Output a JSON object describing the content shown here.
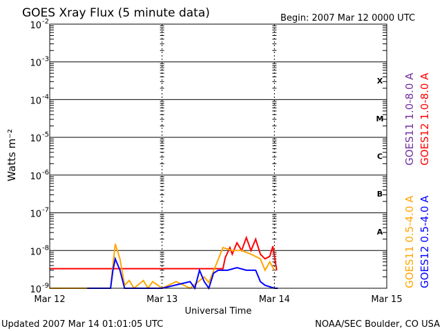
{
  "title": "GOES Xray Flux (5 minute data)",
  "begin": "Begin:  2007 Mar 12 0000 UTC",
  "footer_left": "Updated 2007 Mar 14 01:01:05 UTC",
  "footer_right": "NOAA/SEC Boulder, CO USA",
  "chart_data": {
    "type": "line",
    "yscale": "log",
    "ylim": [
      1e-09,
      0.01
    ],
    "xlim": [
      "2007-03-12T00:00",
      "2007-03-15T00:00"
    ],
    "xlabel": "Universal Time",
    "ylabel": "Watts m⁻²",
    "xticks": [
      {
        "label": "Mar 12",
        "t": "2007-03-12T00:00"
      },
      {
        "label": "Mar 13",
        "t": "2007-03-13T00:00"
      },
      {
        "label": "Mar 14",
        "t": "2007-03-14T00:00"
      },
      {
        "label": "Mar 15",
        "t": "2007-03-15T00:00"
      }
    ],
    "yticks": [
      {
        "label": "10",
        "exp": "-2",
        "value": 0.01
      },
      {
        "label": "10",
        "exp": "-3",
        "value": 0.001
      },
      {
        "label": "10",
        "exp": "-4",
        "value": 0.0001
      },
      {
        "label": "10",
        "exp": "-5",
        "value": 1e-05
      },
      {
        "label": "10",
        "exp": "-6",
        "value": 1e-06
      },
      {
        "label": "10",
        "exp": "-7",
        "value": 1e-07
      },
      {
        "label": "10",
        "exp": "-8",
        "value": 1e-08
      },
      {
        "label": "10",
        "exp": "-9",
        "value": 1e-09
      }
    ],
    "flare_classes": [
      {
        "label": "X",
        "value": 0.000316
      },
      {
        "label": "M",
        "value": 3.16e-05
      },
      {
        "label": "C",
        "value": 3.16e-06
      },
      {
        "label": "B",
        "value": 3.16e-07
      },
      {
        "label": "A",
        "value": 3.16e-08
      }
    ],
    "series": [
      {
        "name": "GOES11 1.0-8.0 A",
        "color": "#7030a0",
        "points": []
      },
      {
        "name": "GOES12 1.0-8.0 A",
        "color": "#ff0000",
        "points": [
          [
            "2007-03-12T00:00",
            3.3e-09
          ],
          [
            "2007-03-13T12:00",
            3.3e-09
          ],
          [
            "2007-03-13T13:00",
            3.3e-09
          ],
          [
            "2007-03-13T13:30",
            6.5e-09
          ],
          [
            "2007-03-13T14:30",
            1.2e-08
          ],
          [
            "2007-03-13T15:00",
            8e-09
          ],
          [
            "2007-03-13T16:00",
            1.6e-08
          ],
          [
            "2007-03-13T17:00",
            1e-08
          ],
          [
            "2007-03-13T18:00",
            2.2e-08
          ],
          [
            "2007-03-13T19:00",
            1e-08
          ],
          [
            "2007-03-13T20:00",
            2e-08
          ],
          [
            "2007-03-13T21:00",
            8e-09
          ],
          [
            "2007-03-13T22:00",
            6e-09
          ],
          [
            "2007-03-13T23:00",
            7e-09
          ],
          [
            "2007-03-13T23:40",
            1.3e-08
          ],
          [
            "2007-03-14T00:30",
            3e-09
          ]
        ]
      },
      {
        "name": "GOES11 0.5-4.0 A",
        "color": "#ffa500",
        "points": [
          [
            "2007-03-12T00:00",
            8e-10
          ],
          [
            "2007-03-12T12:00",
            8e-10
          ],
          [
            "2007-03-12T13:00",
            1e-09
          ],
          [
            "2007-03-12T13:30",
            4e-09
          ],
          [
            "2007-03-12T14:00",
            1.5e-08
          ],
          [
            "2007-03-12T15:00",
            6e-09
          ],
          [
            "2007-03-12T16:00",
            1.2e-09
          ],
          [
            "2007-03-12T17:00",
            1.6e-09
          ],
          [
            "2007-03-12T18:00",
            1e-09
          ],
          [
            "2007-03-12T20:00",
            1.6e-09
          ],
          [
            "2007-03-12T21:00",
            1e-09
          ],
          [
            "2007-03-12T22:00",
            1.5e-09
          ],
          [
            "2007-03-13T00:00",
            8e-10
          ],
          [
            "2007-03-13T03:00",
            1.5e-09
          ],
          [
            "2007-03-13T06:00",
            1e-09
          ],
          [
            "2007-03-13T09:00",
            2e-09
          ],
          [
            "2007-03-13T10:00",
            1.4e-09
          ],
          [
            "2007-03-13T13:00",
            1.2e-08
          ],
          [
            "2007-03-13T15:00",
            1e-08
          ],
          [
            "2007-03-13T17:00",
            1e-08
          ],
          [
            "2007-03-13T19:00",
            8e-09
          ],
          [
            "2007-03-13T21:00",
            6e-09
          ],
          [
            "2007-03-13T22:00",
            3e-09
          ],
          [
            "2007-03-13T23:00",
            5e-09
          ],
          [
            "2007-03-14T00:00",
            3e-09
          ]
        ]
      },
      {
        "name": "GOES12 0.5-4.0 A",
        "color": "#0000ff",
        "points": [
          [
            "2007-03-12T08:00",
            8e-10
          ],
          [
            "2007-03-12T12:00",
            8e-10
          ],
          [
            "2007-03-12T13:00",
            1e-09
          ],
          [
            "2007-03-12T13:30",
            3e-09
          ],
          [
            "2007-03-12T14:00",
            6e-09
          ],
          [
            "2007-03-12T15:00",
            3e-09
          ],
          [
            "2007-03-12T16:00",
            8e-10
          ],
          [
            "2007-03-12T20:00",
            8e-10
          ],
          [
            "2007-03-12T21:00",
            1e-09
          ],
          [
            "2007-03-13T00:00",
            8e-10
          ],
          [
            "2007-03-13T06:00",
            1.5e-09
          ],
          [
            "2007-03-13T07:00",
            1e-09
          ],
          [
            "2007-03-13T08:00",
            3e-09
          ],
          [
            "2007-03-13T09:00",
            1.5e-09
          ],
          [
            "2007-03-13T10:00",
            1e-09
          ],
          [
            "2007-03-13T11:00",
            2.5e-09
          ],
          [
            "2007-03-13T12:00",
            3e-09
          ],
          [
            "2007-03-13T14:00",
            3e-09
          ],
          [
            "2007-03-13T16:00",
            3.5e-09
          ],
          [
            "2007-03-13T18:00",
            3e-09
          ],
          [
            "2007-03-13T20:00",
            3e-09
          ],
          [
            "2007-03-13T21:00",
            1.5e-09
          ],
          [
            "2007-03-13T22:00",
            1.2e-09
          ],
          [
            "2007-03-14T00:00",
            9e-10
          ],
          [
            "2007-03-14T00:45",
            9e-10
          ]
        ]
      }
    ]
  }
}
